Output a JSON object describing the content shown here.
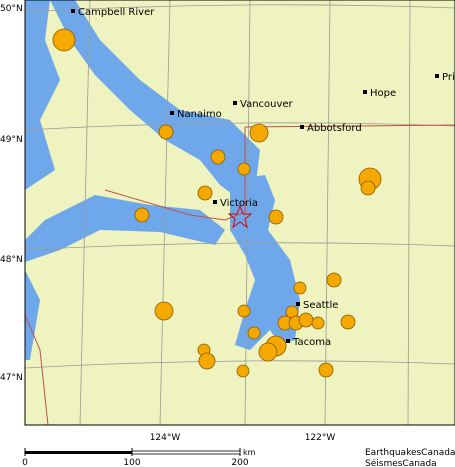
{
  "latitude_labels": [
    "50°N",
    "49°N",
    "48°N",
    "47°N"
  ],
  "longitude_labels": [
    "124°W",
    "122°W"
  ],
  "cities": [
    "Campbell River",
    "Nanaimo",
    "Vancouver",
    "Hope",
    "Pri",
    "Abbotsford",
    "Victoria",
    "Seattle",
    "Tacoma"
  ],
  "scale": {
    "labels": [
      "0",
      "100",
      "200"
    ],
    "unit": "km"
  },
  "credits": [
    "EarthquakesCanada",
    "SéismesCanada"
  ]
}
